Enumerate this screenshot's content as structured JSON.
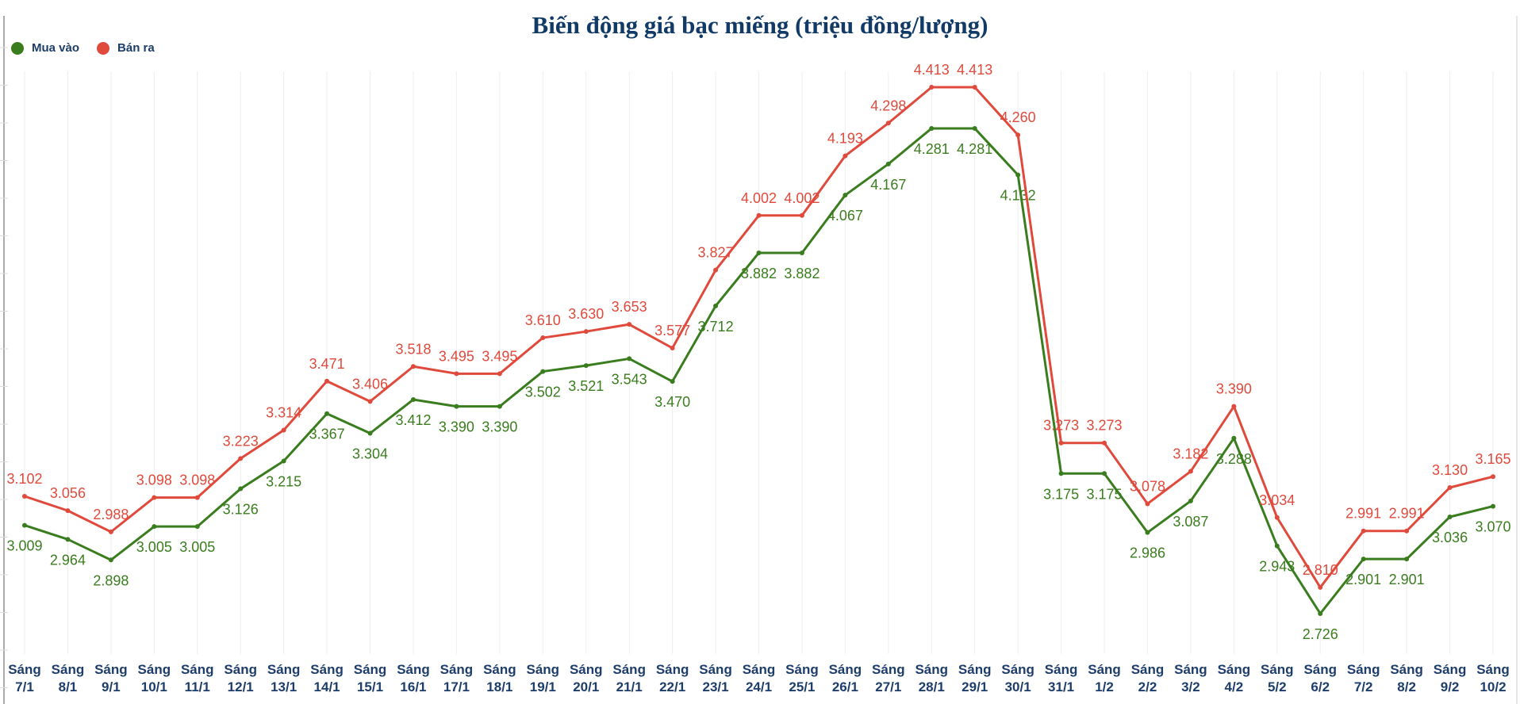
{
  "chart_data": {
    "type": "line",
    "title": "Biến động giá bạc miếng (triệu đồng/lượng)",
    "legend_position": "top-left",
    "grid": true,
    "categories": [
      "Sáng 7/1",
      "Sáng 8/1",
      "Sáng 9/1",
      "Sáng 10/1",
      "Sáng 11/1",
      "Sáng 12/1",
      "Sáng 13/1",
      "Sáng 14/1",
      "Sáng 15/1",
      "Sáng 16/1",
      "Sáng 17/1",
      "Sáng 18/1",
      "Sáng 19/1",
      "Sáng 20/1",
      "Sáng 21/1",
      "Sáng 22/1",
      "Sáng 23/1",
      "Sáng 24/1",
      "Sáng 25/1",
      "Sáng 26/1",
      "Sáng 27/1",
      "Sáng 28/1",
      "Sáng 29/1",
      "Sáng 30/1",
      "Sáng 31/1",
      "Sáng 1/2",
      "Sáng 2/2",
      "Sáng 3/2",
      "Sáng 4/2",
      "Sáng 5/2",
      "Sáng 6/2",
      "Sáng 7/2",
      "Sáng 8/2",
      "Sáng 9/2",
      "Sáng 10/2"
    ],
    "series": [
      {
        "name": "Mua vào",
        "color": "#3a7d1e",
        "label_position": "below",
        "values": [
          3.009,
          2.964,
          2.898,
          3.005,
          3.005,
          3.126,
          3.215,
          3.367,
          3.304,
          3.412,
          3.39,
          3.39,
          3.502,
          3.521,
          3.543,
          3.47,
          3.712,
          3.882,
          3.882,
          4.067,
          4.167,
          4.281,
          4.281,
          4.132,
          3.175,
          3.175,
          2.986,
          3.087,
          3.288,
          2.943,
          2.726,
          2.901,
          2.901,
          3.036,
          3.07
        ]
      },
      {
        "name": "Bán ra",
        "color": "#e04a3c",
        "label_position": "above",
        "values": [
          3.102,
          3.056,
          2.988,
          3.098,
          3.098,
          3.223,
          3.314,
          3.471,
          3.406,
          3.518,
          3.495,
          3.495,
          3.61,
          3.63,
          3.653,
          3.577,
          3.827,
          4.002,
          4.002,
          4.193,
          4.298,
          4.413,
          4.413,
          4.26,
          3.273,
          3.273,
          3.078,
          3.182,
          3.39,
          3.034,
          2.81,
          2.991,
          2.991,
          3.13,
          3.165
        ]
      }
    ]
  }
}
